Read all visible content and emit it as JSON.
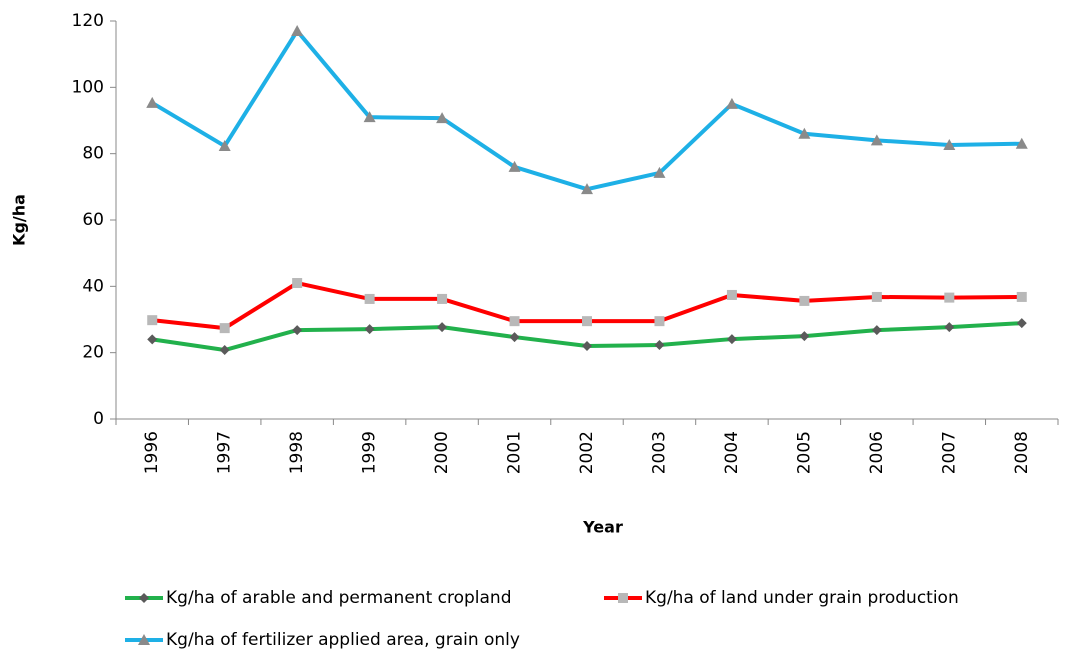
{
  "chart_data": {
    "type": "line",
    "xlabel": "Year",
    "ylabel": "Kg/ha",
    "categories": [
      "1996",
      "1997",
      "1998",
      "1999",
      "2000",
      "2001",
      "2002",
      "2003",
      "2004",
      "2005",
      "2006",
      "2007",
      "2008"
    ],
    "series": [
      {
        "name": "Kg/ha of arable and permanent cropland",
        "color": "#22b14c",
        "marker": "diamond",
        "marker_color": "#5a5a5a",
        "values": [
          24,
          20.8,
          26.8,
          27.1,
          27.7,
          24.7,
          22,
          22.3,
          24.1,
          25,
          26.8,
          27.7,
          28.9
        ]
      },
      {
        "name": "Kg/ha of land under grain production",
        "color": "#ff0000",
        "marker": "square",
        "marker_color": "#b8b8b8",
        "values": [
          29.8,
          27.4,
          41,
          36.2,
          36.2,
          29.5,
          29.5,
          29.5,
          37.4,
          35.6,
          36.8,
          36.6,
          36.8
        ]
      },
      {
        "name": "Kg/ha of fertilizer applied area, grain only",
        "color": "#1eb0e6",
        "marker": "triangle",
        "marker_color": "#8a8a8a",
        "values": [
          95.3,
          82.3,
          117,
          91,
          90.7,
          76,
          69.3,
          74.2,
          95,
          86,
          84,
          82.6,
          83
        ]
      }
    ],
    "ylim": [
      0,
      120
    ],
    "yticks": [
      0,
      20,
      40,
      60,
      80,
      100,
      120
    ],
    "grid": false
  }
}
